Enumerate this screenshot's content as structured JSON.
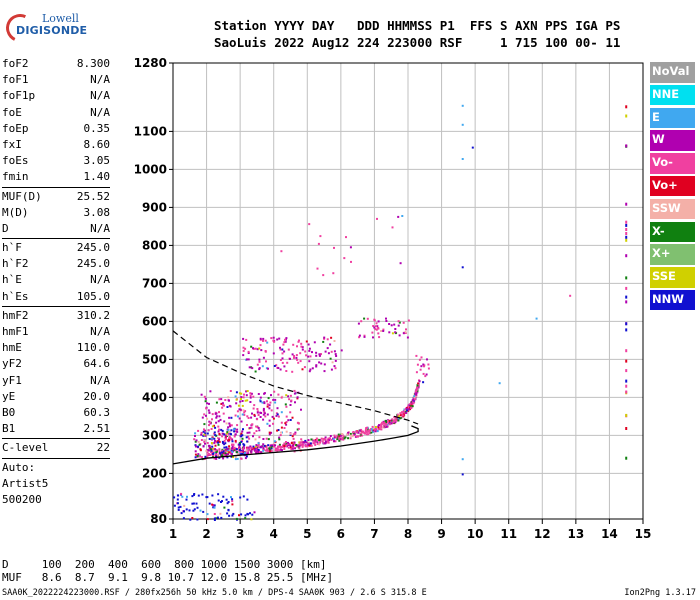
{
  "logo": {
    "line1": "Lowell",
    "line2": "DIGISONDE"
  },
  "header": {
    "line1": "Station YYYY DAY   DDD HHMMSS P1  FFS S AXN PPS IGA PS",
    "line2": "SaoLuis 2022 Aug12 224 223000 RSF     1 715 100 00- 11"
  },
  "params": [
    {
      "k": "foF2",
      "v": "8.300"
    },
    {
      "k": "foF1",
      "v": "N/A"
    },
    {
      "k": "foF1p",
      "v": "N/A"
    },
    {
      "k": "foE",
      "v": "N/A"
    },
    {
      "k": "foEp",
      "v": "0.35"
    },
    {
      "k": "fxI",
      "v": "8.60"
    },
    {
      "k": "foEs",
      "v": "3.05"
    },
    {
      "k": "fmin",
      "v": "1.40"
    },
    {
      "sep": true
    },
    {
      "k": "MUF(D)",
      "v": "25.52"
    },
    {
      "k": "M(D)",
      "v": "3.08"
    },
    {
      "k": "D",
      "v": "N/A"
    },
    {
      "sep": true
    },
    {
      "k": "h`F",
      "v": "245.0"
    },
    {
      "k": "h`F2",
      "v": "245.0"
    },
    {
      "k": "h`E",
      "v": "N/A"
    },
    {
      "k": "h`Es",
      "v": "105.0"
    },
    {
      "sep": true
    },
    {
      "k": "hmF2",
      "v": "310.2"
    },
    {
      "k": "hmF1",
      "v": "N/A"
    },
    {
      "k": "hmE",
      "v": "110.0"
    },
    {
      "k": "yF2",
      "v": "64.6"
    },
    {
      "k": "yF1",
      "v": "N/A"
    },
    {
      "k": "yE",
      "v": "20.0"
    },
    {
      "k": "B0",
      "v": "60.3"
    },
    {
      "k": "B1",
      "v": "2.51"
    },
    {
      "sep": true
    },
    {
      "k": "C-level",
      "v": "22"
    },
    {
      "sep": true
    },
    {
      "k": "Auto:",
      "v": ""
    },
    {
      "k": "Artist5",
      "v": ""
    },
    {
      "k": "500200",
      "v": ""
    }
  ],
  "legend": [
    {
      "label": "NoVal",
      "color": "#a0a0a0"
    },
    {
      "label": "NNE",
      "color": "#00e0f0"
    },
    {
      "label": "E",
      "color": "#40a8f0"
    },
    {
      "label": "W",
      "color": "#b000b0"
    },
    {
      "label": "Vo-",
      "color": "#f040a0"
    },
    {
      "label": "Vo+",
      "color": "#e00020"
    },
    {
      "label": "SSW",
      "color": "#f4b0a8"
    },
    {
      "label": "X-",
      "color": "#108010"
    },
    {
      "label": "X+",
      "color": "#80c070"
    },
    {
      "label": "SSE",
      "color": "#d0d000"
    },
    {
      "label": "NNW",
      "color": "#1010d0"
    }
  ],
  "table": {
    "line1": "D     100  200  400  600  800 1000 1500 3000 [km]",
    "line2": "MUF   8.6  8.7  9.1  9.8 10.7 12.0 15.8 25.5 [MHz]"
  },
  "footer": "SAA0K_2022224223000.RSF / 280fx256h 50 kHz 5.0 km / DPS-4 SAA0K 903 / 2.6 S 315.8 E",
  "version": "Ion2Png 1.3.17",
  "chart_data": {
    "type": "scatter",
    "x_ticks": [
      1,
      2,
      3,
      4,
      5,
      6,
      7,
      8,
      9,
      10,
      11,
      12,
      13,
      14,
      15
    ],
    "y_ticks": [
      80,
      200,
      300,
      400,
      500,
      600,
      700,
      800,
      900,
      1000,
      1100,
      1280
    ],
    "xlim": [
      1,
      15
    ],
    "ylim": [
      80,
      1280
    ],
    "grid": true,
    "profile_curve": {
      "x": [
        1.0,
        2.0,
        3.0,
        4.0,
        5.0,
        6.0,
        7.0,
        7.5,
        8.0,
        8.3,
        8.3,
        8.1
      ],
      "y": [
        225,
        240,
        248,
        255,
        262,
        272,
        285,
        292,
        300,
        310,
        318,
        325
      ]
    },
    "dashed_curve": {
      "x": [
        1.0,
        1.5,
        2.0,
        3.0,
        4.0,
        5.0,
        6.0,
        7.0,
        7.6,
        8.0,
        8.3
      ],
      "y": [
        575,
        540,
        505,
        465,
        430,
        405,
        385,
        365,
        350,
        340,
        330
      ]
    },
    "trace": {
      "x": [
        2.0,
        2.5,
        3.0,
        3.5,
        4.0,
        4.5,
        5.0,
        5.5,
        6.0,
        6.5,
        7.0,
        7.3,
        7.6,
        7.9,
        8.1,
        8.2,
        8.3
      ],
      "y": [
        255,
        258,
        262,
        266,
        270,
        275,
        282,
        290,
        298,
        308,
        320,
        332,
        345,
        365,
        385,
        410,
        440
      ]
    }
  }
}
